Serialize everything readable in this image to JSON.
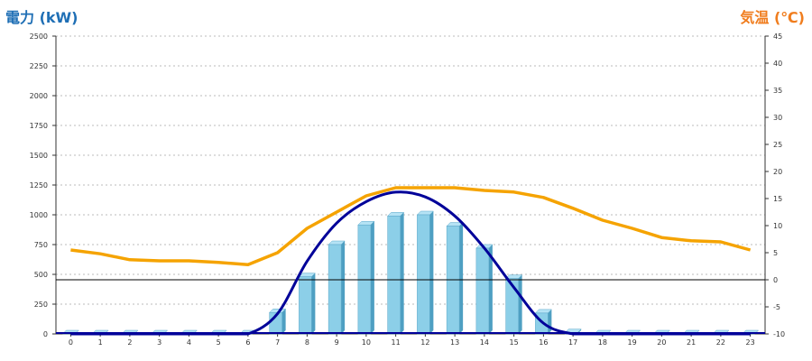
{
  "chart_data": {
    "type": "bar",
    "left_axis_title": "電力 (kW)",
    "right_axis_title": "気温 (℃)",
    "categories": [
      "0",
      "1",
      "2",
      "3",
      "4",
      "5",
      "6",
      "7",
      "8",
      "9",
      "10",
      "11",
      "12",
      "13",
      "14",
      "15",
      "16",
      "17",
      "18",
      "19",
      "20",
      "21",
      "22",
      "23"
    ],
    "y_left": {
      "min": 0,
      "max": 2500,
      "ticks": [
        "0",
        "250",
        "500",
        "750",
        "1000",
        "1250",
        "1500",
        "1750",
        "2000",
        "2250",
        "2500"
      ]
    },
    "y_right": {
      "min": -10,
      "max": 45,
      "ticks": [
        "-10",
        "-5",
        "0",
        "5",
        "10",
        "15",
        "20",
        "25",
        "30",
        "35",
        "40",
        "45"
      ]
    },
    "grid": true,
    "series": [
      {
        "kind": "bar",
        "axis": "left",
        "color": "#8ccfe8",
        "values": [
          0,
          0,
          0,
          0,
          0,
          0,
          0,
          180,
          480,
          750,
          915,
          990,
          1000,
          905,
          720,
          465,
          175,
          10,
          0,
          0,
          0,
          0,
          0,
          0
        ]
      },
      {
        "kind": "line",
        "axis": "right",
        "color": "#f5a300",
        "values": [
          5.5,
          4.8,
          3.7,
          3.5,
          3.5,
          3.2,
          2.8,
          5.0,
          9.5,
          12.5,
          15.5,
          17.0,
          17.0,
          17.0,
          16.5,
          16.2,
          15.2,
          13.2,
          11.0,
          9.5,
          7.8,
          7.2,
          7.0,
          5.5
        ]
      },
      {
        "kind": "line",
        "axis": "left",
        "color": "#000099",
        "smooth": true,
        "values": [
          0,
          0,
          0,
          0,
          0,
          0,
          0,
          170,
          610,
          930,
          1110,
          1190,
          1150,
          990,
          720,
          390,
          90,
          0,
          0,
          0,
          0,
          0,
          0,
          0
        ]
      }
    ]
  }
}
